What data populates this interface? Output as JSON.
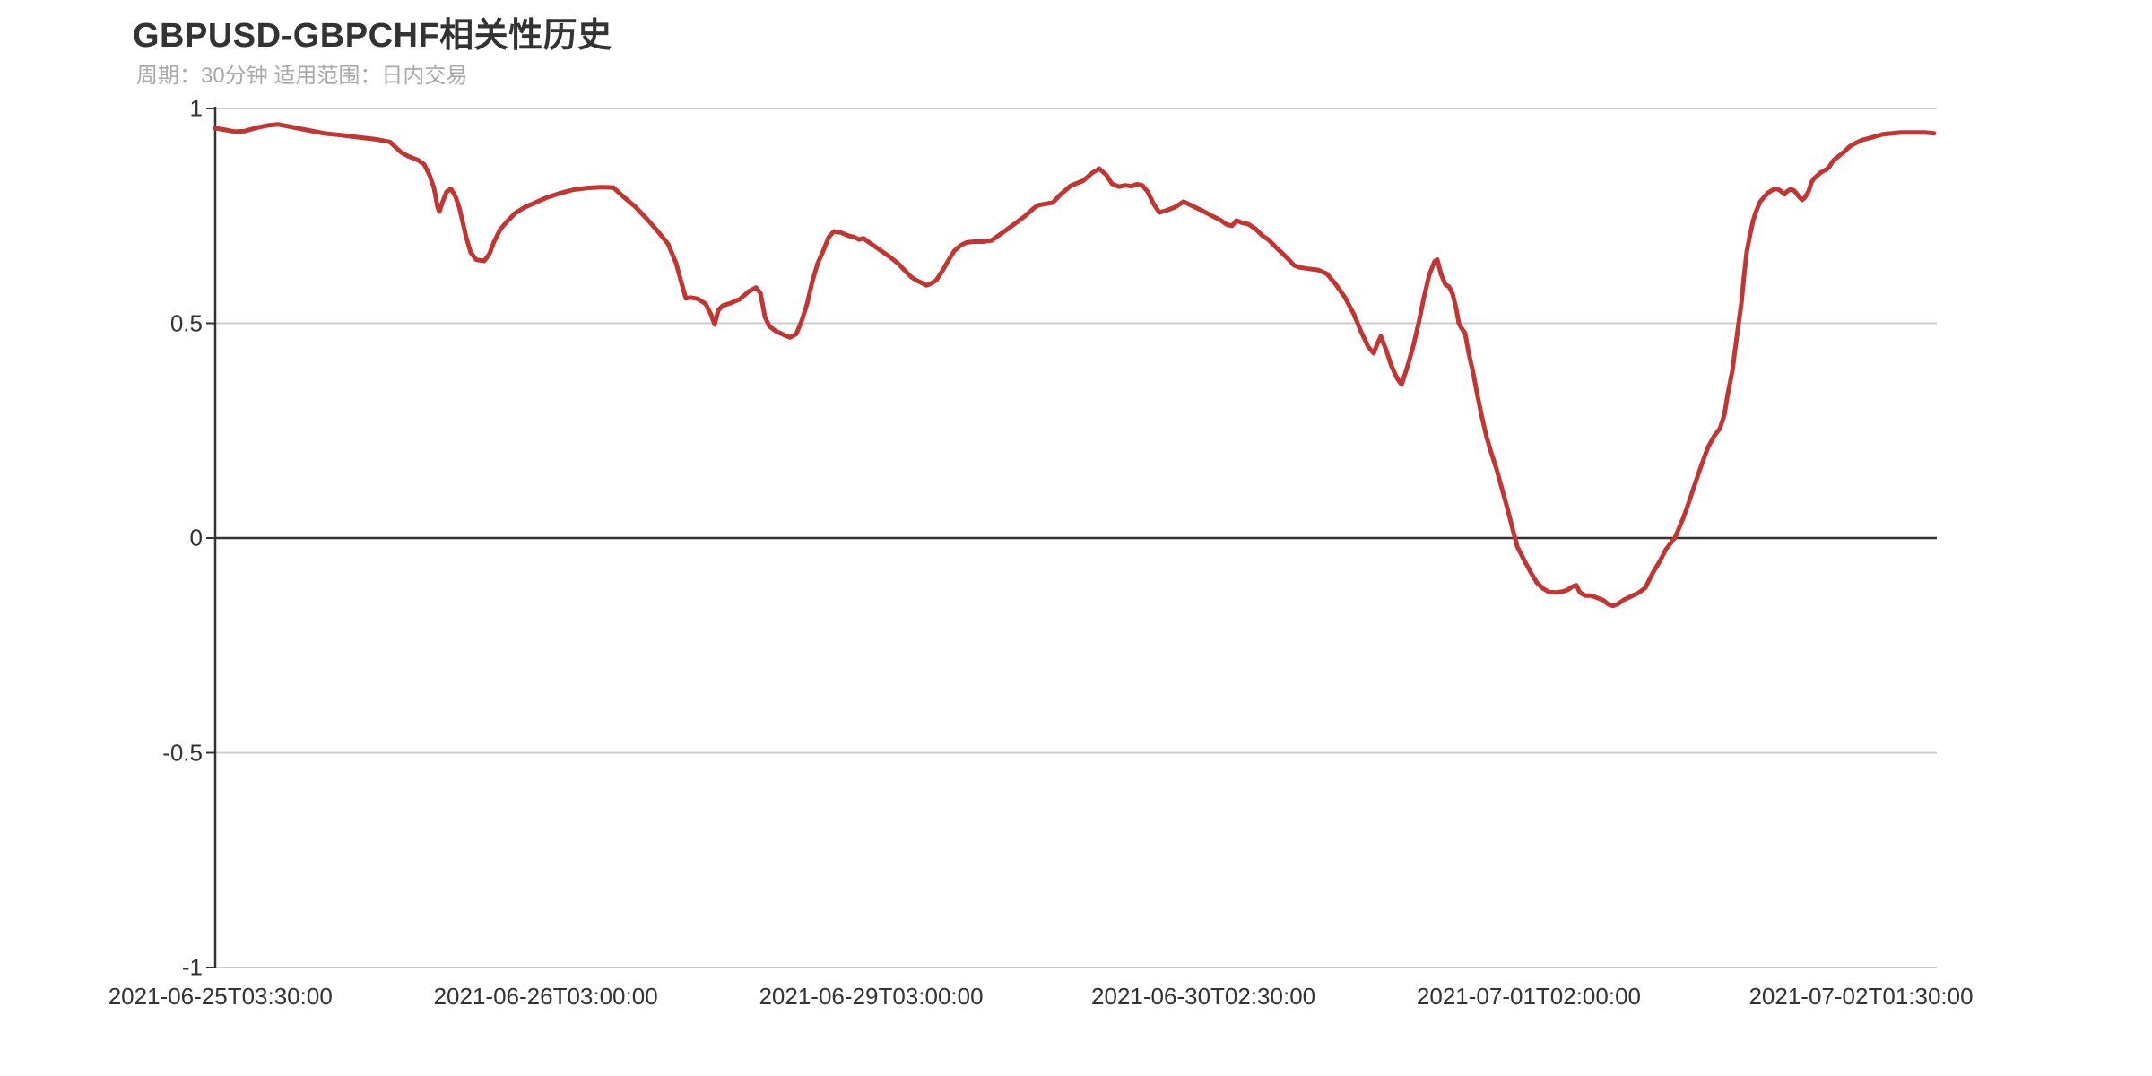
{
  "chart_data": {
    "type": "line",
    "title": "GBPUSD-GBPCHF相关性历史",
    "subtitle": "周期：30分钟 适用范围：日内交易",
    "line_color": "#c23531",
    "axis_color": "#333333",
    "grid_color": "#cccccc",
    "background": "#ffffff",
    "ylim": [
      -1,
      1
    ],
    "grid": {
      "horizontal": true,
      "vertical": false,
      "zero_line_emphasized": true
    },
    "legend_position": "none",
    "y_ticks": [
      {
        "label": "1",
        "value": 1
      },
      {
        "label": "0.5",
        "value": 0.5
      },
      {
        "label": "0",
        "value": 0
      },
      {
        "label": "-0.5",
        "value": -0.5
      },
      {
        "label": "-1",
        "value": -1
      }
    ],
    "x_ticks": [
      {
        "label": "2021-06-25T03:30:00",
        "pos": 0.003
      },
      {
        "label": "2021-06-26T03:00:00",
        "pos": 0.192
      },
      {
        "label": "2021-06-29T03:00:00",
        "pos": 0.381
      },
      {
        "label": "2021-06-30T02:30:00",
        "pos": 0.574
      },
      {
        "label": "2021-07-01T02:00:00",
        "pos": 0.763
      },
      {
        "label": "2021-07-02T01:30:00",
        "pos": 0.956
      }
    ],
    "points": [
      [
        0.0,
        0.954
      ],
      [
        0.0063,
        0.95
      ],
      [
        0.0115,
        0.946
      ],
      [
        0.0167,
        0.947
      ],
      [
        0.025,
        0.956
      ],
      [
        0.0313,
        0.961
      ],
      [
        0.0365,
        0.963
      ],
      [
        0.0427,
        0.958
      ],
      [
        0.0531,
        0.95
      ],
      [
        0.0635,
        0.942
      ],
      [
        0.0729,
        0.938
      ],
      [
        0.0833,
        0.933
      ],
      [
        0.0938,
        0.928
      ],
      [
        0.1016,
        0.922
      ],
      [
        0.1042,
        0.912
      ],
      [
        0.1083,
        0.897
      ],
      [
        0.1125,
        0.888
      ],
      [
        0.1177,
        0.88
      ],
      [
        0.1214,
        0.87
      ],
      [
        0.1245,
        0.845
      ],
      [
        0.1271,
        0.815
      ],
      [
        0.1292,
        0.77
      ],
      [
        0.1302,
        0.76
      ],
      [
        0.1318,
        0.78
      ],
      [
        0.1344,
        0.806
      ],
      [
        0.137,
        0.813
      ],
      [
        0.1396,
        0.795
      ],
      [
        0.1417,
        0.77
      ],
      [
        0.1438,
        0.735
      ],
      [
        0.1458,
        0.7
      ],
      [
        0.1484,
        0.665
      ],
      [
        0.1516,
        0.648
      ],
      [
        0.1563,
        0.645
      ],
      [
        0.1594,
        0.662
      ],
      [
        0.162,
        0.69
      ],
      [
        0.1656,
        0.719
      ],
      [
        0.1698,
        0.738
      ],
      [
        0.1745,
        0.757
      ],
      [
        0.1797,
        0.77
      ],
      [
        0.1854,
        0.78
      ],
      [
        0.1927,
        0.793
      ],
      [
        0.2005,
        0.803
      ],
      [
        0.2083,
        0.811
      ],
      [
        0.2161,
        0.815
      ],
      [
        0.224,
        0.817
      ],
      [
        0.2313,
        0.816
      ],
      [
        0.237,
        0.795
      ],
      [
        0.2438,
        0.772
      ],
      [
        0.2505,
        0.744
      ],
      [
        0.2573,
        0.713
      ],
      [
        0.263,
        0.685
      ],
      [
        0.2677,
        0.64
      ],
      [
        0.2708,
        0.595
      ],
      [
        0.2734,
        0.558
      ],
      [
        0.276,
        0.56
      ],
      [
        0.2802,
        0.557
      ],
      [
        0.2849,
        0.545
      ],
      [
        0.288,
        0.52
      ],
      [
        0.2901,
        0.497
      ],
      [
        0.2922,
        0.53
      ],
      [
        0.2948,
        0.541
      ],
      [
        0.2995,
        0.547
      ],
      [
        0.3047,
        0.556
      ],
      [
        0.3099,
        0.574
      ],
      [
        0.3141,
        0.583
      ],
      [
        0.3167,
        0.57
      ],
      [
        0.3193,
        0.515
      ],
      [
        0.3219,
        0.493
      ],
      [
        0.3255,
        0.482
      ],
      [
        0.3302,
        0.473
      ],
      [
        0.3339,
        0.467
      ],
      [
        0.3375,
        0.475
      ],
      [
        0.3406,
        0.505
      ],
      [
        0.3438,
        0.545
      ],
      [
        0.3469,
        0.598
      ],
      [
        0.35,
        0.64
      ],
      [
        0.3531,
        0.668
      ],
      [
        0.3563,
        0.7
      ],
      [
        0.3594,
        0.714
      ],
      [
        0.3635,
        0.711
      ],
      [
        0.3677,
        0.704
      ],
      [
        0.3714,
        0.7
      ],
      [
        0.374,
        0.695
      ],
      [
        0.3766,
        0.698
      ],
      [
        0.3792,
        0.69
      ],
      [
        0.3828,
        0.68
      ],
      [
        0.387,
        0.668
      ],
      [
        0.3917,
        0.655
      ],
      [
        0.3964,
        0.64
      ],
      [
        0.4005,
        0.623
      ],
      [
        0.4042,
        0.608
      ],
      [
        0.4073,
        0.6
      ],
      [
        0.4104,
        0.594
      ],
      [
        0.413,
        0.588
      ],
      [
        0.4156,
        0.592
      ],
      [
        0.4188,
        0.6
      ],
      [
        0.4224,
        0.622
      ],
      [
        0.426,
        0.647
      ],
      [
        0.4292,
        0.668
      ],
      [
        0.4328,
        0.681
      ],
      [
        0.4365,
        0.688
      ],
      [
        0.4406,
        0.69
      ],
      [
        0.4458,
        0.69
      ],
      [
        0.451,
        0.693
      ],
      [
        0.4563,
        0.708
      ],
      [
        0.4615,
        0.723
      ],
      [
        0.4656,
        0.735
      ],
      [
        0.4708,
        0.751
      ],
      [
        0.4755,
        0.768
      ],
      [
        0.4781,
        0.775
      ],
      [
        0.4823,
        0.778
      ],
      [
        0.4865,
        0.781
      ],
      [
        0.4911,
        0.8
      ],
      [
        0.4969,
        0.82
      ],
      [
        0.5042,
        0.832
      ],
      [
        0.5094,
        0.85
      ],
      [
        0.5135,
        0.86
      ],
      [
        0.5177,
        0.845
      ],
      [
        0.5208,
        0.825
      ],
      [
        0.525,
        0.818
      ],
      [
        0.5286,
        0.821
      ],
      [
        0.5323,
        0.819
      ],
      [
        0.5354,
        0.824
      ],
      [
        0.5385,
        0.821
      ],
      [
        0.5417,
        0.806
      ],
      [
        0.5448,
        0.78
      ],
      [
        0.5484,
        0.758
      ],
      [
        0.5521,
        0.762
      ],
      [
        0.5573,
        0.77
      ],
      [
        0.5625,
        0.783
      ],
      [
        0.5682,
        0.772
      ],
      [
        0.5734,
        0.762
      ],
      [
        0.5786,
        0.751
      ],
      [
        0.5839,
        0.74
      ],
      [
        0.5875,
        0.73
      ],
      [
        0.5906,
        0.727
      ],
      [
        0.5932,
        0.739
      ],
      [
        0.5964,
        0.734
      ],
      [
        0.6,
        0.731
      ],
      [
        0.6042,
        0.72
      ],
      [
        0.6083,
        0.704
      ],
      [
        0.612,
        0.694
      ],
      [
        0.6156,
        0.679
      ],
      [
        0.6193,
        0.665
      ],
      [
        0.6229,
        0.651
      ],
      [
        0.6266,
        0.635
      ],
      [
        0.6297,
        0.63
      ],
      [
        0.6349,
        0.627
      ],
      [
        0.6406,
        0.624
      ],
      [
        0.6458,
        0.615
      ],
      [
        0.651,
        0.59
      ],
      [
        0.6563,
        0.56
      ],
      [
        0.6615,
        0.52
      ],
      [
        0.6656,
        0.48
      ],
      [
        0.6698,
        0.445
      ],
      [
        0.6729,
        0.43
      ],
      [
        0.675,
        0.452
      ],
      [
        0.6771,
        0.47
      ],
      [
        0.6802,
        0.437
      ],
      [
        0.6833,
        0.4
      ],
      [
        0.6865,
        0.372
      ],
      [
        0.6891,
        0.357
      ],
      [
        0.6922,
        0.395
      ],
      [
        0.6958,
        0.445
      ],
      [
        0.699,
        0.5
      ],
      [
        0.7021,
        0.56
      ],
      [
        0.7052,
        0.613
      ],
      [
        0.7083,
        0.644
      ],
      [
        0.7099,
        0.648
      ],
      [
        0.712,
        0.615
      ],
      [
        0.7146,
        0.59
      ],
      [
        0.7167,
        0.585
      ],
      [
        0.7188,
        0.568
      ],
      [
        0.7208,
        0.535
      ],
      [
        0.7224,
        0.5
      ],
      [
        0.724,
        0.488
      ],
      [
        0.726,
        0.477
      ],
      [
        0.7281,
        0.43
      ],
      [
        0.7307,
        0.385
      ],
      [
        0.7333,
        0.33
      ],
      [
        0.7359,
        0.28
      ],
      [
        0.7385,
        0.235
      ],
      [
        0.7411,
        0.2
      ],
      [
        0.7443,
        0.16
      ],
      [
        0.7474,
        0.115
      ],
      [
        0.7505,
        0.07
      ],
      [
        0.7536,
        0.022
      ],
      [
        0.7563,
        -0.02
      ],
      [
        0.7609,
        -0.056
      ],
      [
        0.7646,
        -0.083
      ],
      [
        0.7677,
        -0.104
      ],
      [
        0.7714,
        -0.118
      ],
      [
        0.775,
        -0.126
      ],
      [
        0.7786,
        -0.127
      ],
      [
        0.7823,
        -0.125
      ],
      [
        0.7854,
        -0.121
      ],
      [
        0.7885,
        -0.113
      ],
      [
        0.7906,
        -0.11
      ],
      [
        0.7927,
        -0.127
      ],
      [
        0.7958,
        -0.134
      ],
      [
        0.799,
        -0.134
      ],
      [
        0.8026,
        -0.139
      ],
      [
        0.8063,
        -0.145
      ],
      [
        0.8094,
        -0.155
      ],
      [
        0.812,
        -0.158
      ],
      [
        0.8146,
        -0.154
      ],
      [
        0.8182,
        -0.144
      ],
      [
        0.8219,
        -0.137
      ],
      [
        0.8271,
        -0.127
      ],
      [
        0.8307,
        -0.116
      ],
      [
        0.8349,
        -0.082
      ],
      [
        0.8391,
        -0.054
      ],
      [
        0.8427,
        -0.026
      ],
      [
        0.8479,
        0.001
      ],
      [
        0.8526,
        0.045
      ],
      [
        0.8563,
        0.087
      ],
      [
        0.8599,
        0.13
      ],
      [
        0.8635,
        0.172
      ],
      [
        0.8672,
        0.212
      ],
      [
        0.8708,
        0.238
      ],
      [
        0.874,
        0.255
      ],
      [
        0.8766,
        0.287
      ],
      [
        0.8786,
        0.335
      ],
      [
        0.8813,
        0.39
      ],
      [
        0.8828,
        0.438
      ],
      [
        0.8849,
        0.5
      ],
      [
        0.8865,
        0.547
      ],
      [
        0.888,
        0.61
      ],
      [
        0.8896,
        0.666
      ],
      [
        0.8917,
        0.71
      ],
      [
        0.8932,
        0.737
      ],
      [
        0.8948,
        0.758
      ],
      [
        0.8974,
        0.783
      ],
      [
        0.8995,
        0.793
      ],
      [
        0.9021,
        0.804
      ],
      [
        0.9052,
        0.812
      ],
      [
        0.9073,
        0.813
      ],
      [
        0.9094,
        0.808
      ],
      [
        0.9115,
        0.8
      ],
      [
        0.913,
        0.807
      ],
      [
        0.9151,
        0.812
      ],
      [
        0.9167,
        0.81
      ],
      [
        0.9182,
        0.804
      ],
      [
        0.9203,
        0.793
      ],
      [
        0.9219,
        0.787
      ],
      [
        0.9234,
        0.793
      ],
      [
        0.9255,
        0.807
      ],
      [
        0.9271,
        0.827
      ],
      [
        0.9286,
        0.837
      ],
      [
        0.9307,
        0.844
      ],
      [
        0.9323,
        0.85
      ],
      [
        0.9339,
        0.854
      ],
      [
        0.9359,
        0.858
      ],
      [
        0.9375,
        0.864
      ],
      [
        0.9401,
        0.88
      ],
      [
        0.9427,
        0.888
      ],
      [
        0.9464,
        0.9
      ],
      [
        0.9495,
        0.912
      ],
      [
        0.9531,
        0.92
      ],
      [
        0.9568,
        0.927
      ],
      [
        0.9599,
        0.93
      ],
      [
        0.9635,
        0.934
      ],
      [
        0.9688,
        0.94
      ],
      [
        0.974,
        0.942
      ],
      [
        0.9792,
        0.944
      ],
      [
        0.9859,
        0.944
      ],
      [
        0.9932,
        0.944
      ],
      [
        0.9984,
        0.942
      ]
    ]
  }
}
